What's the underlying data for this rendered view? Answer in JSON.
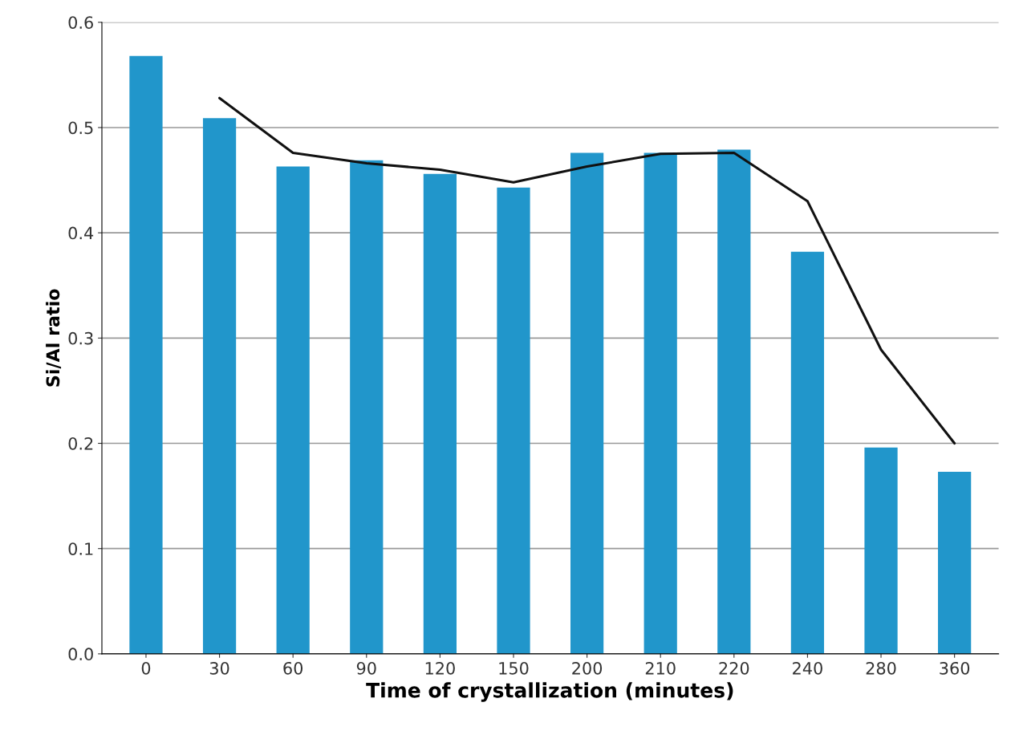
{
  "chart_data": {
    "type": "bar",
    "xlabel": "Time of crystallization (minutes)",
    "ylabel": "Si/Al ratio",
    "categories": [
      "0",
      "30",
      "60",
      "90",
      "120",
      "150",
      "200",
      "210",
      "220",
      "240",
      "280",
      "360"
    ],
    "series": [
      {
        "color": "#2196cb",
        "values": [
          0.568,
          0.509,
          0.463,
          0.469,
          0.456,
          0.443,
          0.476,
          0.476,
          0.479,
          0.382,
          0.196,
          0.173
        ]
      },
      {
        "type": "line",
        "color": "#111111",
        "values": [
          null,
          0.528,
          0.476,
          0.466,
          0.46,
          0.448,
          0.463,
          0.475,
          0.476,
          0.43,
          0.289,
          0.2
        ]
      }
    ],
    "ylim": [
      0,
      0.6
    ],
    "yticks": [
      {
        "value": 0,
        "label": "0.0"
      },
      {
        "value": 0.1,
        "label": "0.1"
      },
      {
        "value": 0.2,
        "label": "0.2"
      },
      {
        "value": 0.3,
        "label": "0.3"
      },
      {
        "value": 0.4,
        "label": "0.4"
      },
      {
        "value": 0.5,
        "label": "0.5"
      },
      {
        "value": 0.6,
        "label": "0.6"
      }
    ],
    "grid": "y",
    "marker": "none",
    "line_style": "solid"
  }
}
